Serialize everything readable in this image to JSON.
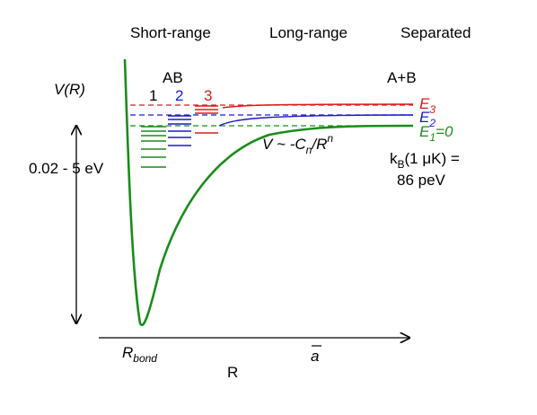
{
  "regions": {
    "short_range": "Short-range",
    "long_range": "Long-range",
    "separated": "Separated"
  },
  "labels": {
    "potential": "V(R)",
    "molecule": "AB",
    "atoms": "A+B",
    "depth_range": "0.02 - 5 eV",
    "asymptote_prefix": "V ~ -C",
    "asymptote_sub": "n",
    "asymptote_mid": "/R",
    "asymptote_sup": "n",
    "kb_line1_pre": "k",
    "kb_line1_sub": "B",
    "kb_line1_post": "(1 μK) =",
    "kb_line2": "86 peV",
    "r_bond_main": "R",
    "r_bond_sub": "bond",
    "r_axis": "R",
    "a_bar": "a"
  },
  "channels": [
    {
      "index": "1",
      "energy_main": "E",
      "energy_sub": "1",
      "energy_suffix": "=0",
      "color": "#1a8c1a"
    },
    {
      "index": "2",
      "energy_main": "E",
      "energy_sub": "2",
      "energy_suffix": "",
      "color": "#1a1acc"
    },
    {
      "index": "3",
      "energy_main": "E",
      "energy_sub": "3",
      "energy_suffix": "",
      "color": "#dd1a1a"
    }
  ],
  "colors": {
    "axis": "#000000",
    "green": "#1a8c1a",
    "blue": "#1a1acc",
    "red": "#dd1a1a"
  }
}
